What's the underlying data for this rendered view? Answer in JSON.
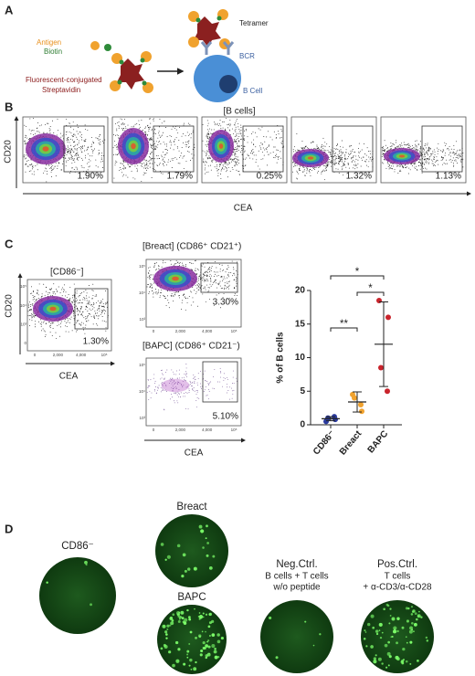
{
  "panel_a": {
    "label": "A",
    "antigen": "Antigen",
    "biotin": "Biotin",
    "streptavidin": [
      "Fluorescent-conjugated",
      "Streptavidin"
    ],
    "tetramer": "Tetramer",
    "bcr": "BCR",
    "b_cell": "B Cell"
  },
  "panel_b": {
    "label": "B",
    "gate": "[B cells]",
    "y_label": "CD20",
    "x_label": "CEA",
    "percentages": [
      "1.90%",
      "1.79%",
      "0.25%",
      "1.32%",
      "1.13%"
    ]
  },
  "panel_c": {
    "label": "C",
    "y_label": "CD20",
    "x_label": "CEA",
    "plots": [
      {
        "title": "[CD86⁻]",
        "percentage": "1.30%",
        "xticks": [
          "0",
          "2,000",
          "4,000",
          "10⁵"
        ],
        "yticks": [
          "10⁵",
          "10⁴",
          "10³",
          "0"
        ]
      },
      {
        "title": "[Breact] (CD86⁺ CD21⁺)",
        "percentage": "3.30%",
        "xticks": [
          "0",
          "2,000",
          "4,000",
          "10⁵"
        ],
        "yticks": [
          "10⁵",
          "10⁴",
          "10³"
        ]
      },
      {
        "title": "[BAPC] (CD86⁺ CD21⁻)",
        "percentage": "5.10%",
        "xticks": [
          "0",
          "2,000",
          "4,000",
          "10⁵"
        ],
        "yticks": [
          "10⁵",
          "10⁴",
          "10³"
        ]
      }
    ]
  },
  "chart_data": {
    "type": "dot",
    "y_label": "% of B cells",
    "categories": [
      "CD86⁻",
      "Breact",
      "BAPC"
    ],
    "colors": [
      "#2a3a9e",
      "#f0a22e",
      "#c9242c"
    ],
    "values": [
      [
        0.5,
        0.8,
        1.0,
        1.2
      ],
      [
        4.5,
        2.0,
        4.0,
        3.0
      ],
      [
        18.5,
        16.0,
        8.5,
        5.0
      ]
    ],
    "means": [
      0.9,
      3.4,
      12.0
    ],
    "sd": [
      0.3,
      1.5,
      6.3
    ],
    "ylim": [
      0,
      20
    ],
    "yticks": [
      0,
      5,
      10,
      15,
      20
    ],
    "significance": [
      {
        "text": "*",
        "between": [
          0,
          2
        ]
      },
      {
        "text": "*",
        "between": [
          1,
          2
        ]
      },
      {
        "text": "**",
        "between": [
          0,
          1
        ]
      }
    ]
  },
  "panel_d": {
    "label": "D",
    "cd86": "CD86⁻",
    "breact": "Breact",
    "bapc": "BAPC",
    "neg_ctrl": [
      "Neg.Ctrl.",
      "B cells + T cells",
      "w/o peptide"
    ],
    "pos_ctrl": [
      "Pos.Ctrl.",
      "T cells",
      "+ α-CD3/α-CD28"
    ]
  }
}
